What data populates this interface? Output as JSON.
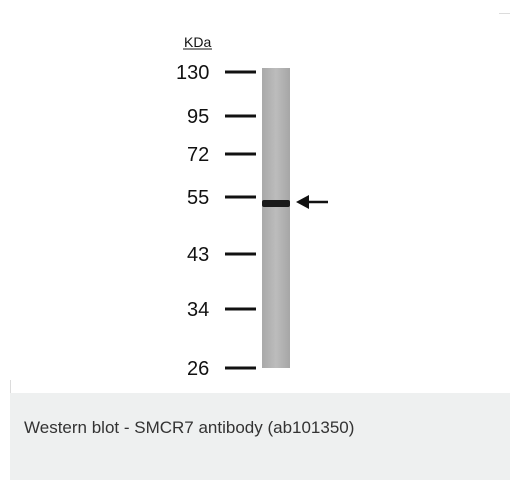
{
  "figure": {
    "unit_label": "KDa",
    "markers": [
      "130",
      "95",
      "72",
      "55",
      "43",
      "34",
      "26"
    ],
    "caption": "Western blot - SMCR7 antibody (ab101350)"
  },
  "colors": {
    "lane": "#b3b3b3",
    "band": "#1a1a1a",
    "caption_bg": "#eef0f0",
    "text": "#111111"
  }
}
